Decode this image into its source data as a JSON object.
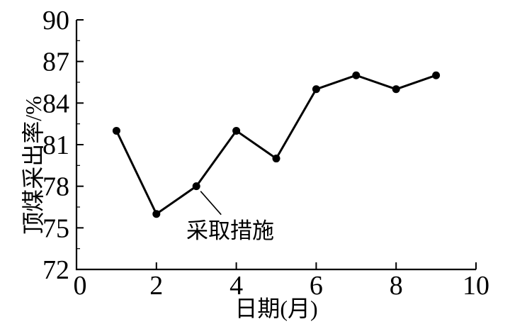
{
  "chart_data": {
    "type": "line",
    "title": "",
    "xlabel": "日期(月)",
    "ylabel": "顶煤采出率/%",
    "x": [
      1,
      2,
      3,
      4,
      5,
      6,
      7,
      8,
      9
    ],
    "y": [
      82,
      76,
      78,
      82,
      80,
      85,
      86,
      85,
      86
    ],
    "xlim": [
      0,
      10
    ],
    "ylim": [
      72,
      90
    ],
    "x_ticks": [
      0,
      2,
      4,
      6,
      8,
      10
    ],
    "y_ticks": [
      72,
      75,
      78,
      81,
      84,
      87,
      90
    ],
    "y_minor_ticks": [
      73.5,
      76.5,
      79.5,
      82.5,
      85.5,
      88.5
    ],
    "grid": false,
    "legend": false,
    "line_color": "#000000",
    "marker": "filled-circle",
    "marker_color": "#000000",
    "axis_color": "#000000",
    "background_color": "#ffffff",
    "annotation": {
      "text": "采取措施",
      "target_x": 3,
      "target_y": 78
    }
  }
}
